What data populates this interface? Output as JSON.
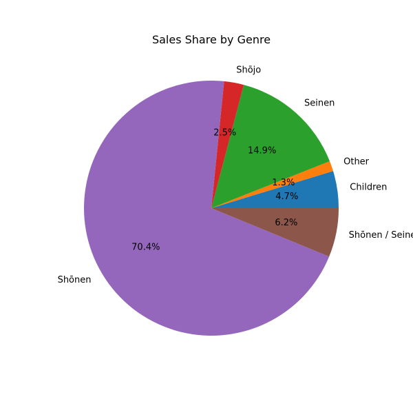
{
  "chart_data": {
    "type": "pie",
    "title": "Sales Share by Genre",
    "slices": [
      {
        "label": "Children",
        "value": 4.7,
        "pct_label": "4.7%",
        "color": "#1f77b4"
      },
      {
        "label": "Other",
        "value": 1.3,
        "pct_label": "1.3%",
        "color": "#ff7f0e"
      },
      {
        "label": "Seinen",
        "value": 14.9,
        "pct_label": "14.9%",
        "color": "#2ca02c"
      },
      {
        "label": "Shōjo",
        "value": 2.5,
        "pct_label": "2.5%",
        "color": "#d62728"
      },
      {
        "label": "Shōnen",
        "value": 70.4,
        "pct_label": "70.4%",
        "color": "#9467bd"
      },
      {
        "label": "Shōnen / Seinen",
        "value": 6.2,
        "pct_label": "6.2%",
        "color": "#8c564b"
      }
    ],
    "start_angle_deg": 0,
    "direction": "counterclockwise"
  }
}
